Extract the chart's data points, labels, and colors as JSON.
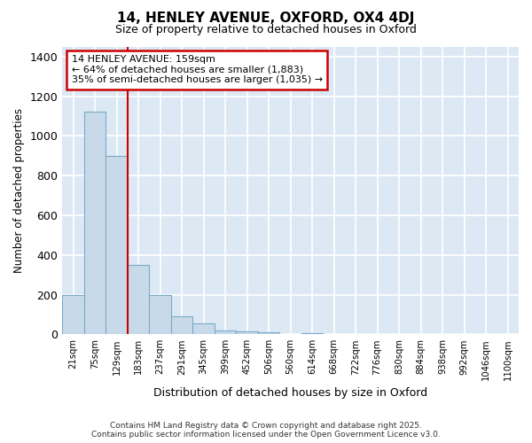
{
  "title": "14, HENLEY AVENUE, OXFORD, OX4 4DJ",
  "subtitle": "Size of property relative to detached houses in Oxford",
  "xlabel": "Distribution of detached houses by size in Oxford",
  "ylabel": "Number of detached properties",
  "bar_color": "#c8daea",
  "bar_edge_color": "#7aaac8",
  "background_color": "#dce9f5",
  "fig_background_color": "#ffffff",
  "grid_color": "#ffffff",
  "categories": [
    "21sqm",
    "75sqm",
    "129sqm",
    "183sqm",
    "237sqm",
    "291sqm",
    "345sqm",
    "399sqm",
    "452sqm",
    "506sqm",
    "560sqm",
    "614sqm",
    "668sqm",
    "722sqm",
    "776sqm",
    "830sqm",
    "884sqm",
    "938sqm",
    "992sqm",
    "1046sqm",
    "1100sqm"
  ],
  "values": [
    200,
    1120,
    900,
    350,
    200,
    90,
    55,
    20,
    15,
    10,
    0,
    8,
    0,
    0,
    0,
    0,
    0,
    0,
    0,
    0,
    0
  ],
  "ylim": [
    0,
    1450
  ],
  "yticks": [
    0,
    200,
    400,
    600,
    800,
    1000,
    1200,
    1400
  ],
  "property_line_x": 2.5,
  "property_line_color": "#cc0000",
  "annotation_text": "14 HENLEY AVENUE: 159sqm\n← 64% of detached houses are smaller (1,883)\n35% of semi-detached houses are larger (1,035) →",
  "annotation_box_color": "#ffffff",
  "annotation_box_edge_color": "#cc0000",
  "footer_text": "Contains HM Land Registry data © Crown copyright and database right 2025.\nContains public sector information licensed under the Open Government Licence v3.0.",
  "figsize": [
    6.0,
    5.0
  ],
  "dpi": 100
}
